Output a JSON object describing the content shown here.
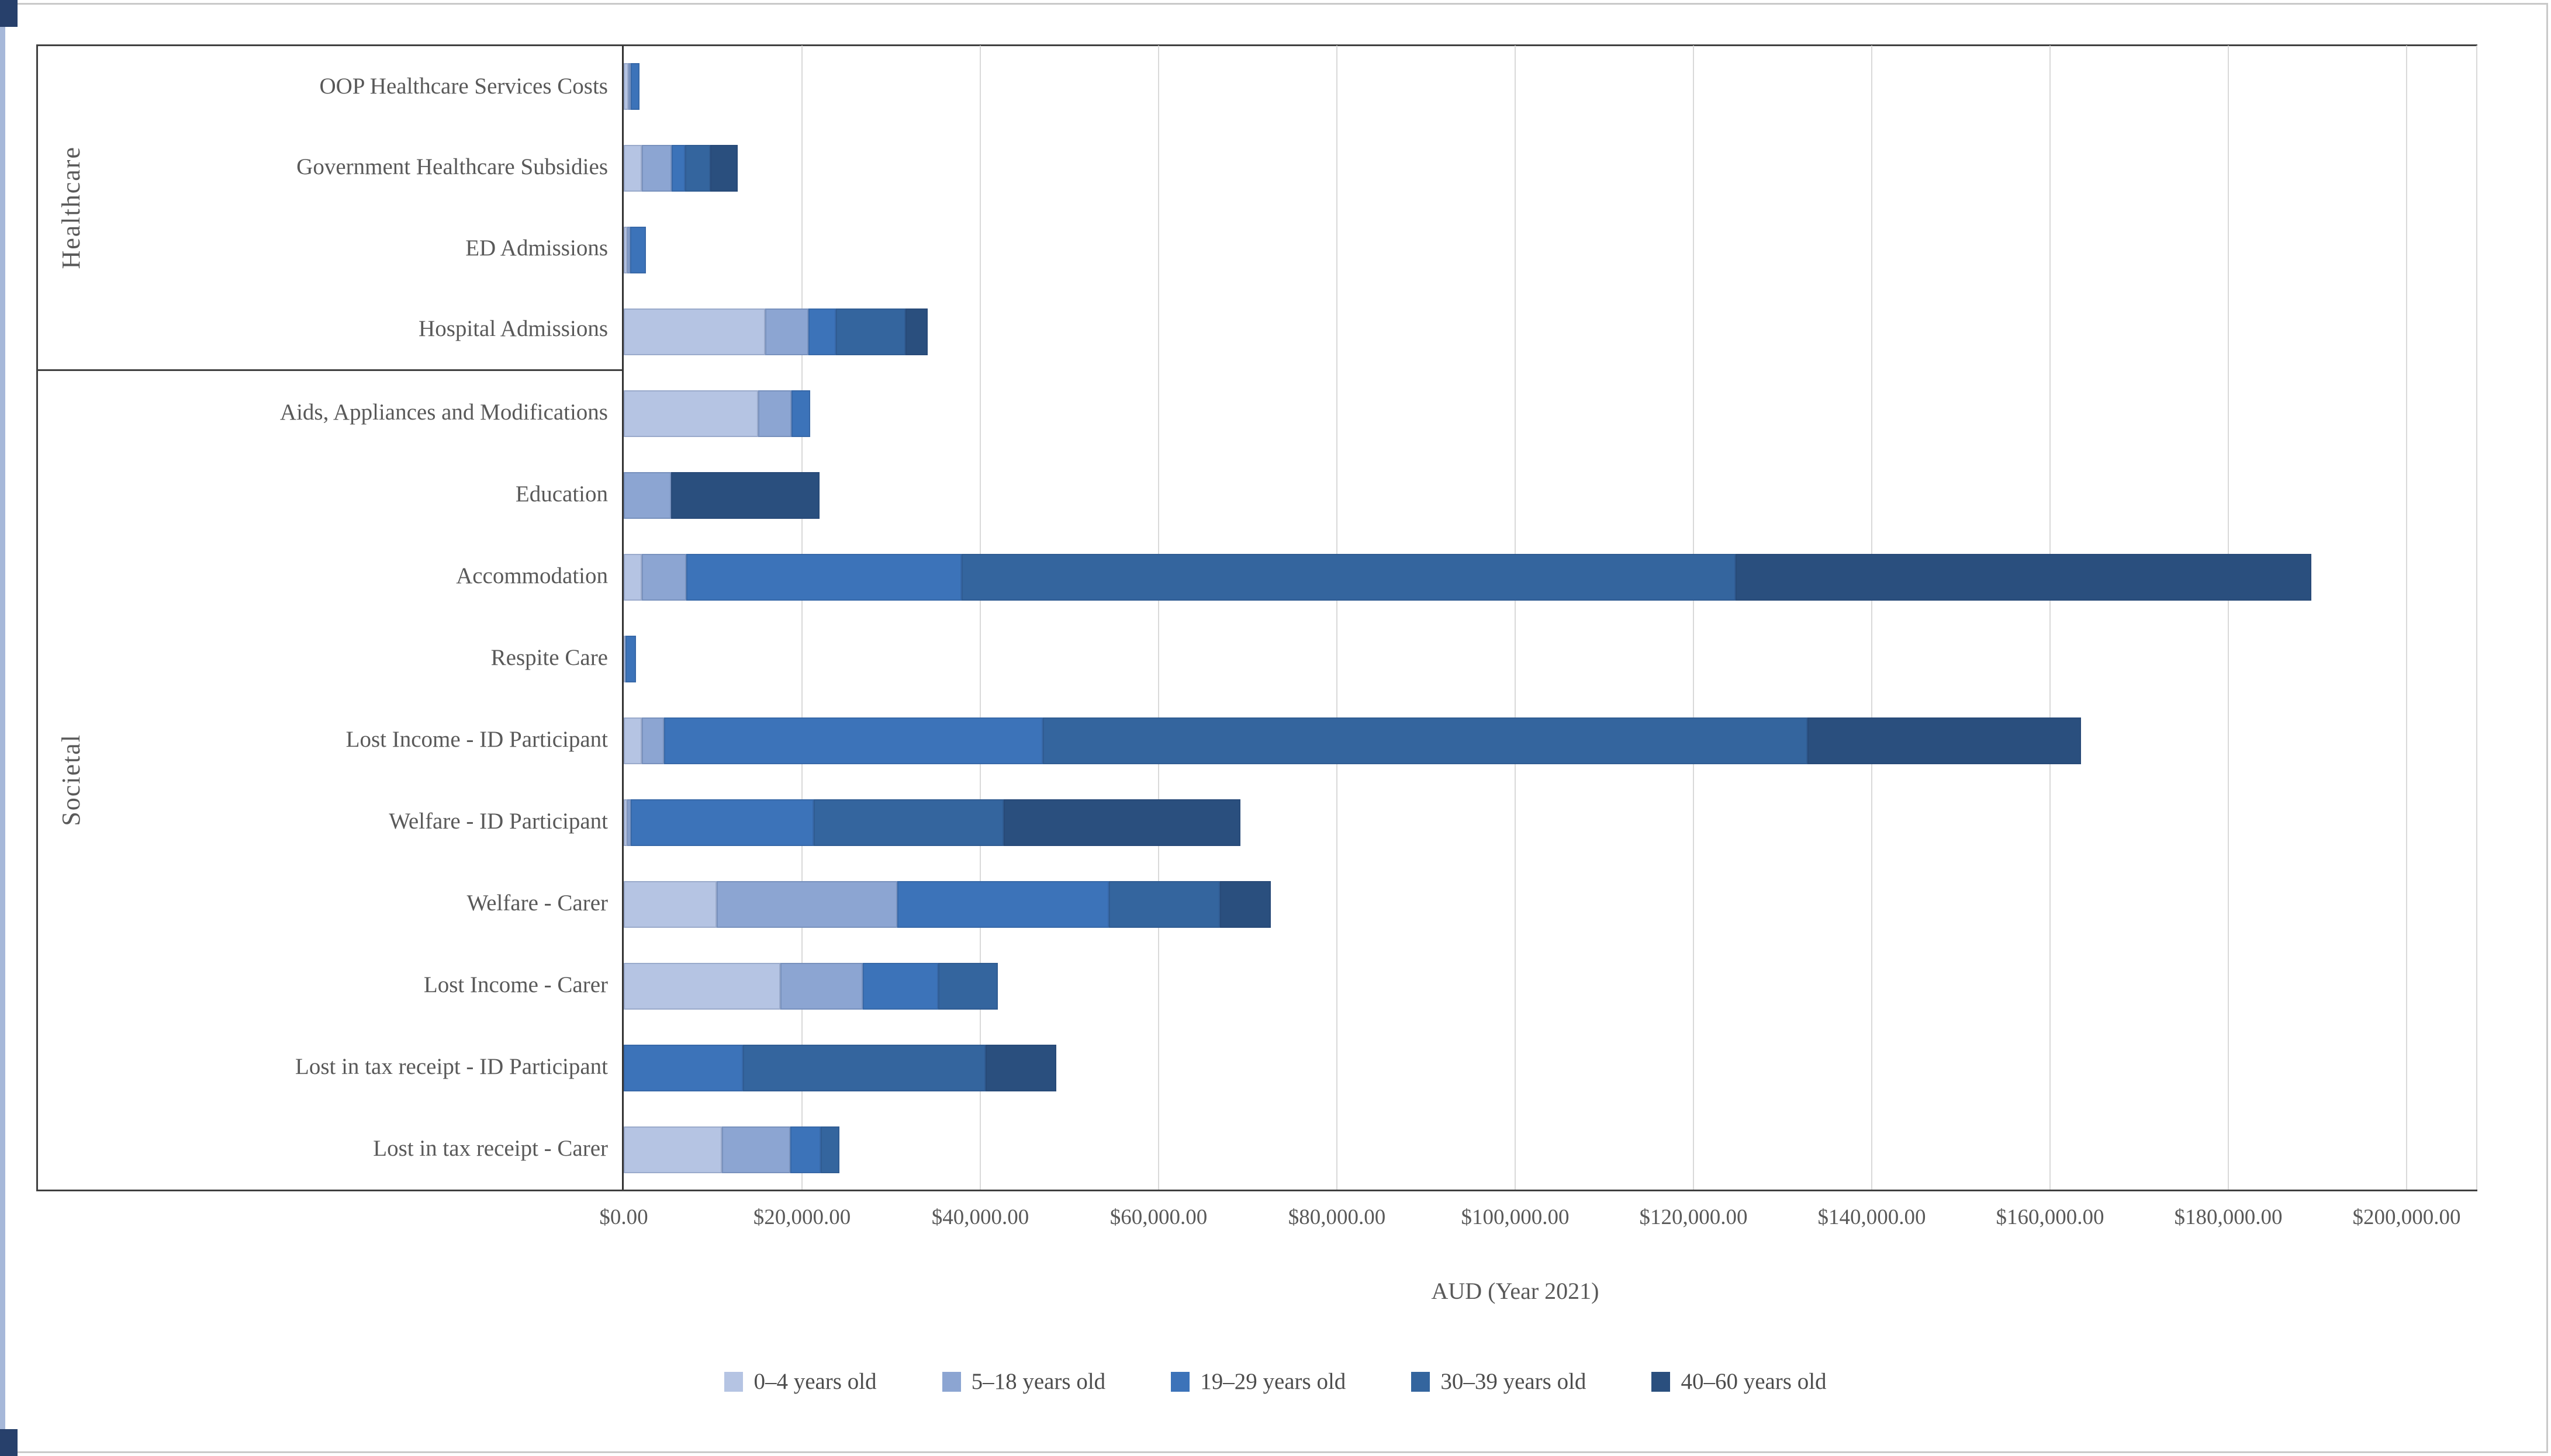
{
  "chart_data": {
    "type": "bar",
    "orientation": "horizontal",
    "stacked": true,
    "xlabel": "AUD (Year 2021)",
    "xlim": [
      0,
      200000
    ],
    "x_tick_interval": 20000,
    "x_tick_labels": [
      "$0.00",
      "$20,000.00",
      "$40,000.00",
      "$60,000.00",
      "$80,000.00",
      "$100,000.00",
      "$120,000.00",
      "$140,000.00",
      "$160,000.00",
      "$180,000.00",
      "$200,000.00"
    ],
    "grid": true,
    "legend_position": "bottom",
    "series_names": [
      "0–4 years old",
      "5–18 years old",
      "19–29 years old",
      "30–39 years old",
      "40–60 years old"
    ],
    "series_colors": [
      "#b5c4e3",
      "#8ca5d2",
      "#3c73b9",
      "#34659e",
      "#2a4f7e"
    ],
    "groups": [
      {
        "label": "Healthcare"
      },
      {
        "label": "Societal"
      }
    ],
    "rows": [
      {
        "group": "Healthcare",
        "category": "OOP Healthcare Services Costs",
        "values": [
          500,
          300,
          1000,
          0,
          0
        ]
      },
      {
        "group": "Healthcare",
        "category": "Government Healthcare Subsidies",
        "values": [
          2000,
          3400,
          1500,
          2800,
          3100
        ]
      },
      {
        "group": "Healthcare",
        "category": "ED Admissions",
        "values": [
          400,
          300,
          1800,
          0,
          0
        ]
      },
      {
        "group": "Healthcare",
        "category": "Hospital Admissions",
        "values": [
          15900,
          4800,
          3100,
          7800,
          2500
        ]
      },
      {
        "group": "Societal",
        "category": "Aids, Appliances and Modifications",
        "values": [
          15100,
          3700,
          2100,
          0,
          0
        ]
      },
      {
        "group": "Societal",
        "category": "Education",
        "values": [
          0,
          5300,
          0,
          0,
          16700
        ]
      },
      {
        "group": "Societal",
        "category": "Accommodation",
        "values": [
          2000,
          5000,
          30900,
          86800,
          64600
        ]
      },
      {
        "group": "Societal",
        "category": "Respite Care",
        "values": [
          200,
          0,
          1200,
          0,
          0
        ]
      },
      {
        "group": "Societal",
        "category": "Lost Income - ID Participant",
        "values": [
          2000,
          2500,
          42500,
          85800,
          30700
        ]
      },
      {
        "group": "Societal",
        "category": "Welfare - ID Participant",
        "values": [
          400,
          400,
          20500,
          21300,
          26600
        ]
      },
      {
        "group": "Societal",
        "category": "Welfare - Carer",
        "values": [
          10400,
          20300,
          23700,
          12500,
          5700
        ]
      },
      {
        "group": "Societal",
        "category": "Lost Income - Carer",
        "values": [
          17600,
          9200,
          8500,
          6700,
          0
        ]
      },
      {
        "group": "Societal",
        "category": "Lost in tax receipt - ID Participant",
        "values": [
          0,
          0,
          13400,
          27200,
          7900
        ]
      },
      {
        "group": "Societal",
        "category": "Lost in tax receipt - Carer",
        "values": [
          11000,
          7700,
          3400,
          2100,
          0
        ]
      }
    ]
  }
}
